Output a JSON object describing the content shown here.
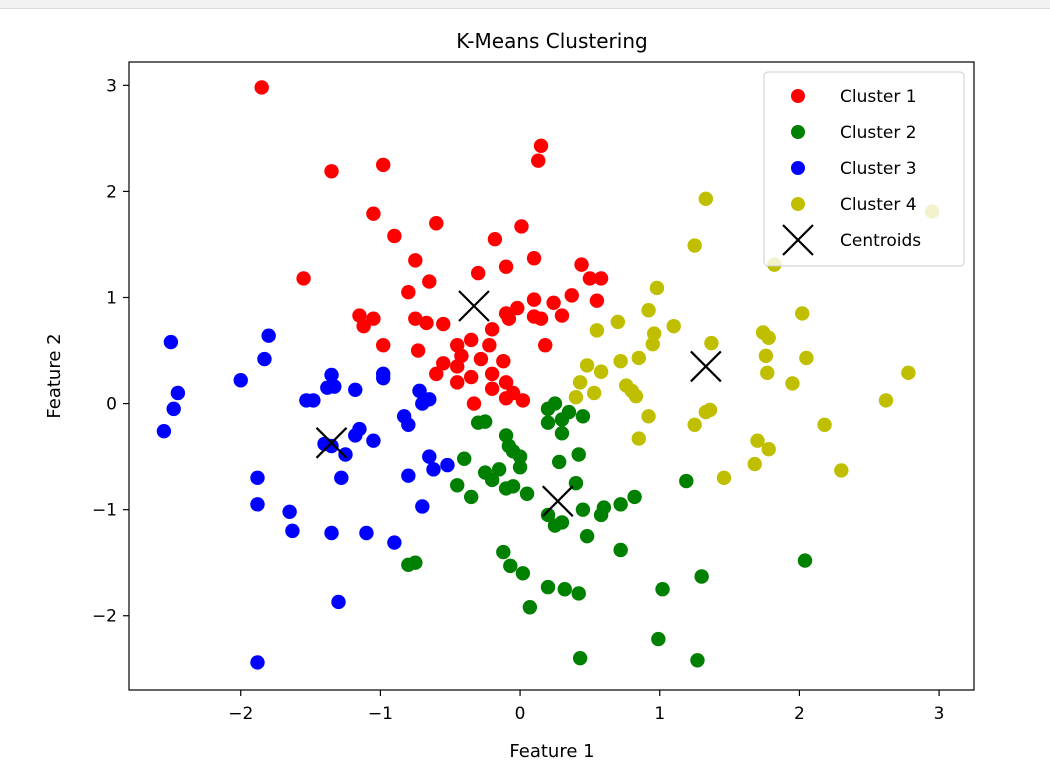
{
  "chart_data": {
    "type": "scatter",
    "title": "K-Means Clustering",
    "xlabel": "Feature 1",
    "ylabel": "Feature 2",
    "xlim": [
      -2.8,
      3.25
    ],
    "ylim": [
      -2.7,
      3.22
    ],
    "xticks": [
      -2,
      -1,
      0,
      1,
      2,
      3
    ],
    "xtick_labels": [
      "−2",
      "−1",
      "0",
      "1",
      "2",
      "3"
    ],
    "yticks": [
      -2,
      -1,
      0,
      1,
      2,
      3
    ],
    "ytick_labels": [
      "−2",
      "−1",
      "0",
      "1",
      "2",
      "3"
    ],
    "grid": false,
    "legend_position": "top-right",
    "series": [
      {
        "name": "Cluster 1",
        "color": "#ff0000",
        "points": [
          [
            -1.85,
            2.98
          ],
          [
            0.15,
            2.43
          ],
          [
            0.13,
            2.29
          ],
          [
            -1.35,
            2.19
          ],
          [
            -0.98,
            2.25
          ],
          [
            -1.05,
            1.79
          ],
          [
            -0.6,
            1.7
          ],
          [
            -0.9,
            1.58
          ],
          [
            -0.18,
            1.55
          ],
          [
            0.01,
            1.67
          ],
          [
            -1.55,
            1.18
          ],
          [
            -0.75,
            1.35
          ],
          [
            -0.3,
            1.23
          ],
          [
            -0.1,
            1.29
          ],
          [
            0.1,
            1.37
          ],
          [
            0.44,
            1.31
          ],
          [
            0.5,
            1.18
          ],
          [
            0.58,
            1.18
          ],
          [
            -0.8,
            1.05
          ],
          [
            -0.65,
            1.15
          ],
          [
            0.1,
            0.98
          ],
          [
            0.24,
            0.95
          ],
          [
            0.37,
            1.02
          ],
          [
            0.55,
            0.97
          ],
          [
            -1.15,
            0.83
          ],
          [
            -1.05,
            0.8
          ],
          [
            -0.75,
            0.8
          ],
          [
            -0.67,
            0.76
          ],
          [
            -0.55,
            0.75
          ],
          [
            -0.1,
            0.85
          ],
          [
            -0.02,
            0.9
          ],
          [
            0.1,
            0.82
          ],
          [
            0.15,
            0.8
          ],
          [
            0.3,
            0.83
          ],
          [
            -1.12,
            0.73
          ],
          [
            -0.98,
            0.55
          ],
          [
            -0.73,
            0.5
          ],
          [
            -0.2,
            0.7
          ],
          [
            -0.08,
            0.8
          ],
          [
            -0.45,
            0.55
          ],
          [
            -0.35,
            0.6
          ],
          [
            -0.22,
            0.55
          ],
          [
            0.18,
            0.55
          ],
          [
            -0.42,
            0.45
          ],
          [
            -0.28,
            0.42
          ],
          [
            -0.12,
            0.4
          ],
          [
            -0.45,
            0.35
          ],
          [
            -0.6,
            0.28
          ],
          [
            -0.35,
            0.25
          ],
          [
            -0.2,
            0.28
          ],
          [
            -0.1,
            0.2
          ],
          [
            -0.45,
            0.2
          ],
          [
            -0.2,
            0.14
          ],
          [
            -0.05,
            0.1
          ],
          [
            0.02,
            0.03
          ],
          [
            -0.33,
            0.0
          ],
          [
            -0.1,
            0.05
          ],
          [
            -0.55,
            0.38
          ]
        ]
      },
      {
        "name": "Cluster 2",
        "color": "#008000",
        "points": [
          [
            0.2,
            -0.05
          ],
          [
            0.25,
            0.0
          ],
          [
            0.35,
            -0.08
          ],
          [
            0.45,
            -0.12
          ],
          [
            0.3,
            -0.15
          ],
          [
            0.2,
            -0.18
          ],
          [
            -0.25,
            -0.17
          ],
          [
            -0.3,
            -0.18
          ],
          [
            -0.1,
            -0.3
          ],
          [
            0.3,
            -0.28
          ],
          [
            -0.08,
            -0.4
          ],
          [
            -0.05,
            -0.45
          ],
          [
            0.0,
            -0.5
          ],
          [
            0.42,
            -0.48
          ],
          [
            -0.4,
            -0.52
          ],
          [
            0.28,
            -0.55
          ],
          [
            0.0,
            -0.6
          ],
          [
            -0.15,
            -0.62
          ],
          [
            -0.25,
            -0.65
          ],
          [
            -0.2,
            -0.72
          ],
          [
            -0.45,
            -0.77
          ],
          [
            0.4,
            -0.75
          ],
          [
            -0.35,
            -0.88
          ],
          [
            -0.1,
            -0.8
          ],
          [
            -0.05,
            -0.78
          ],
          [
            0.05,
            -0.85
          ],
          [
            0.82,
            -0.88
          ],
          [
            0.72,
            -0.95
          ],
          [
            0.6,
            -0.98
          ],
          [
            0.45,
            -1.0
          ],
          [
            0.58,
            -1.05
          ],
          [
            0.2,
            -1.05
          ],
          [
            0.3,
            -1.12
          ],
          [
            0.25,
            -1.15
          ],
          [
            0.48,
            -1.25
          ],
          [
            1.19,
            -0.73
          ],
          [
            0.72,
            -1.38
          ],
          [
            -0.8,
            -1.52
          ],
          [
            -0.75,
            -1.5
          ],
          [
            -0.12,
            -1.4
          ],
          [
            -0.07,
            -1.53
          ],
          [
            0.02,
            -1.6
          ],
          [
            0.2,
            -1.73
          ],
          [
            0.32,
            -1.75
          ],
          [
            0.42,
            -1.79
          ],
          [
            1.3,
            -1.63
          ],
          [
            1.02,
            -1.75
          ],
          [
            2.04,
            -1.48
          ],
          [
            0.07,
            -1.92
          ],
          [
            0.99,
            -2.22
          ],
          [
            0.43,
            -2.4
          ],
          [
            1.27,
            -2.42
          ]
        ]
      },
      {
        "name": "Cluster 3",
        "color": "#0000ff",
        "points": [
          [
            -2.5,
            0.58
          ],
          [
            -2.45,
            0.1
          ],
          [
            -2.48,
            -0.05
          ],
          [
            -2.55,
            -0.26
          ],
          [
            -2.0,
            0.22
          ],
          [
            -1.8,
            0.64
          ],
          [
            -1.83,
            0.42
          ],
          [
            -1.53,
            0.03
          ],
          [
            -1.48,
            0.03
          ],
          [
            -1.35,
            0.27
          ],
          [
            -1.38,
            0.15
          ],
          [
            -1.33,
            0.16
          ],
          [
            -1.18,
            0.13
          ],
          [
            -0.98,
            0.28
          ],
          [
            -0.98,
            0.24
          ],
          [
            -0.72,
            0.12
          ],
          [
            -0.65,
            0.04
          ],
          [
            -0.7,
            0.0
          ],
          [
            -0.83,
            -0.12
          ],
          [
            -0.8,
            -0.2
          ],
          [
            -1.05,
            -0.35
          ],
          [
            -1.15,
            -0.24
          ],
          [
            -1.18,
            -0.3
          ],
          [
            -1.25,
            -0.48
          ],
          [
            -1.4,
            -0.38
          ],
          [
            -1.35,
            -0.4
          ],
          [
            -0.65,
            -0.5
          ],
          [
            -0.52,
            -0.58
          ],
          [
            -0.62,
            -0.62
          ],
          [
            -0.8,
            -0.68
          ],
          [
            -1.28,
            -0.7
          ],
          [
            -0.7,
            -0.97
          ],
          [
            -1.88,
            -0.7
          ],
          [
            -1.88,
            -0.95
          ],
          [
            -1.65,
            -1.02
          ],
          [
            -1.63,
            -1.2
          ],
          [
            -1.35,
            -1.22
          ],
          [
            -1.1,
            -1.22
          ],
          [
            -0.9,
            -1.31
          ],
          [
            -1.3,
            -1.87
          ],
          [
            -1.88,
            -2.44
          ]
        ]
      },
      {
        "name": "Cluster 4",
        "color": "#bfbf00",
        "points": [
          [
            1.33,
            1.93
          ],
          [
            2.95,
            1.81
          ],
          [
            1.25,
            1.49
          ],
          [
            1.82,
            1.31
          ],
          [
            0.98,
            1.09
          ],
          [
            0.92,
            0.88
          ],
          [
            1.1,
            0.73
          ],
          [
            0.7,
            0.77
          ],
          [
            0.55,
            0.69
          ],
          [
            0.96,
            0.66
          ],
          [
            0.95,
            0.56
          ],
          [
            1.37,
            0.57
          ],
          [
            1.74,
            0.67
          ],
          [
            1.78,
            0.62
          ],
          [
            2.02,
            0.85
          ],
          [
            0.48,
            0.36
          ],
          [
            0.58,
            0.3
          ],
          [
            0.72,
            0.4
          ],
          [
            0.85,
            0.43
          ],
          [
            1.76,
            0.45
          ],
          [
            2.05,
            0.43
          ],
          [
            1.77,
            0.29
          ],
          [
            0.43,
            0.2
          ],
          [
            0.76,
            0.17
          ],
          [
            0.8,
            0.12
          ],
          [
            0.53,
            0.1
          ],
          [
            0.83,
            0.07
          ],
          [
            0.4,
            0.06
          ],
          [
            1.95,
            0.19
          ],
          [
            2.78,
            0.29
          ],
          [
            2.62,
            0.03
          ],
          [
            1.33,
            -0.08
          ],
          [
            1.36,
            -0.06
          ],
          [
            0.92,
            -0.12
          ],
          [
            1.25,
            -0.2
          ],
          [
            0.85,
            -0.33
          ],
          [
            1.7,
            -0.35
          ],
          [
            2.18,
            -0.2
          ],
          [
            1.78,
            -0.43
          ],
          [
            1.68,
            -0.57
          ],
          [
            2.3,
            -0.63
          ],
          [
            1.46,
            -0.7
          ]
        ]
      }
    ],
    "centroids": {
      "name": "Centroids",
      "color": "#000000",
      "points": [
        [
          -0.33,
          0.92
        ],
        [
          1.33,
          0.35
        ],
        [
          -1.35,
          -0.37
        ],
        [
          0.27,
          -0.92
        ]
      ]
    }
  }
}
